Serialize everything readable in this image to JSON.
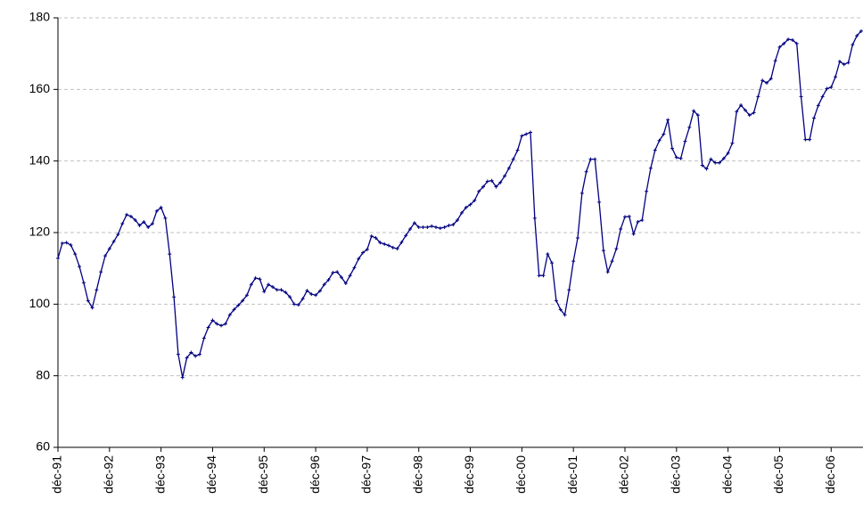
{
  "chart_data": {
    "type": "line",
    "categories": [
      "déc-91",
      null,
      null,
      null,
      null,
      null,
      null,
      null,
      null,
      null,
      null,
      null,
      "déc-92",
      null,
      null,
      null,
      null,
      null,
      null,
      null,
      null,
      null,
      null,
      null,
      "déc-93",
      null,
      null,
      null,
      null,
      null,
      null,
      null,
      null,
      null,
      null,
      null,
      "déc-94",
      null,
      null,
      null,
      null,
      null,
      null,
      null,
      null,
      null,
      null,
      null,
      "déc-95",
      null,
      null,
      null,
      null,
      null,
      null,
      null,
      null,
      null,
      null,
      null,
      "déc-96",
      null,
      null,
      null,
      null,
      null,
      null,
      null,
      null,
      null,
      null,
      null,
      "déc-97",
      null,
      null,
      null,
      null,
      null,
      null,
      null,
      null,
      null,
      null,
      null,
      "déc-98",
      null,
      null,
      null,
      null,
      null,
      null,
      null,
      null,
      null,
      null,
      null,
      "déc-99",
      null,
      null,
      null,
      null,
      null,
      null,
      null,
      null,
      null,
      null,
      null,
      "déc-00",
      null,
      null,
      null,
      null,
      null,
      null,
      null,
      null,
      null,
      null,
      null,
      "déc-01",
      null,
      null,
      null,
      null,
      null,
      null,
      null,
      null,
      null,
      null,
      null,
      "déc-02",
      null,
      null,
      null,
      null,
      null,
      null,
      null,
      null,
      null,
      null,
      null,
      "déc-03",
      null,
      null,
      null,
      null,
      null,
      null,
      null,
      null,
      null,
      null,
      null,
      "déc-04",
      null,
      null,
      null,
      null,
      null,
      null,
      null,
      null,
      null,
      null,
      null,
      "déc-05",
      null,
      null,
      null,
      null,
      null,
      null,
      null,
      null,
      null,
      null,
      null,
      "déc-06",
      null,
      null,
      null,
      null,
      null,
      null,
      null
    ],
    "values": [
      112.8,
      117,
      117.2,
      116.5,
      114,
      110.5,
      106,
      101,
      99,
      104,
      109,
      113.5,
      115.5,
      117.5,
      119.5,
      122.5,
      125,
      124.5,
      123.5,
      122,
      123,
      121.5,
      122.5,
      126,
      127,
      124,
      114,
      102,
      86,
      79.5,
      85,
      86.5,
      85.5,
      86,
      90.5,
      93.5,
      95.5,
      94.5,
      94,
      94.5,
      97,
      98.5,
      99.7,
      101,
      102.5,
      105.5,
      107.3,
      107,
      103.5,
      105.5,
      104.8,
      104,
      104,
      103.3,
      102,
      100,
      99.8,
      101.5,
      103.8,
      102.8,
      102.5,
      103.7,
      105.5,
      106.8,
      108.8,
      109,
      107.5,
      105.8,
      108,
      110.2,
      112.7,
      114.4,
      115.3,
      119,
      118.5,
      117.2,
      116.8,
      116.4,
      115.8,
      115.5,
      117.3,
      119.2,
      121,
      122.7,
      121.5,
      121.5,
      121.5,
      121.8,
      121.5,
      121.2,
      121.5,
      122,
      122.2,
      123.5,
      125.5,
      127,
      127.8,
      129,
      131.5,
      132.8,
      134.3,
      134.5,
      132.8,
      134,
      135.8,
      138,
      140.5,
      143,
      147,
      147.5,
      148,
      124,
      108,
      108,
      114,
      111.5,
      101,
      98.5,
      97,
      104,
      112,
      118.5,
      131,
      137,
      140.5,
      140.5,
      128.5,
      115,
      109,
      112,
      115.5,
      121,
      124.4,
      124.5,
      119.6,
      123,
      123.5,
      131.5,
      138,
      143,
      145.7,
      147.5,
      151.5,
      143.5,
      141,
      140.7,
      145.5,
      149.4,
      154,
      152.8,
      138.8,
      137.8,
      140.5,
      139.5,
      139.5,
      140.7,
      142.2,
      145,
      153.8,
      155.6,
      154.2,
      152.8,
      153.5,
      158,
      162.5,
      161.8,
      163,
      168,
      171.8,
      172.8,
      174,
      173.8,
      172.8,
      158,
      146,
      146,
      152,
      155.5,
      158,
      160.2,
      160.6,
      163.5,
      167.8,
      167,
      167.5,
      172.5,
      175,
      176.3
    ],
    "color": "#000080",
    "ylim": [
      60,
      180
    ],
    "yticks": [
      60,
      80,
      100,
      120,
      140,
      160,
      180
    ],
    "grid": true
  }
}
